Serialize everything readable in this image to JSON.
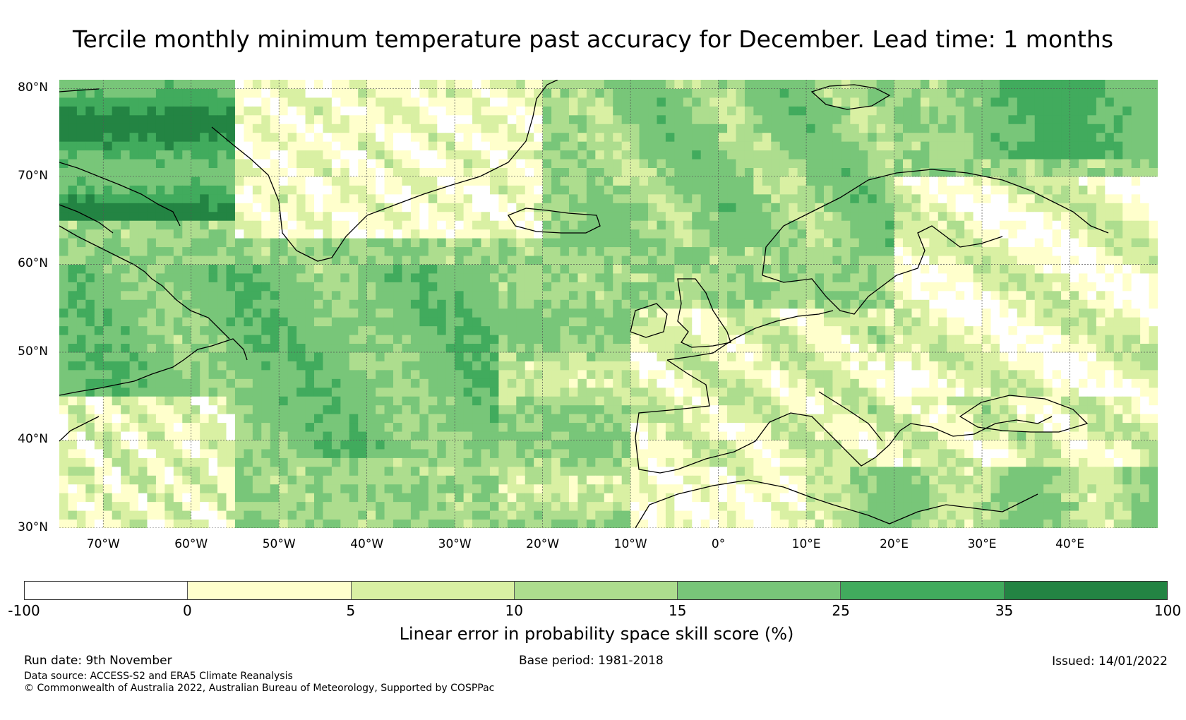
{
  "title": "Tercile monthly minimum temperature past accuracy for December. Lead time: 1 months",
  "map": {
    "lat_labels": [
      "80°N",
      "70°N",
      "60°N",
      "50°N",
      "40°N",
      "30°N"
    ],
    "lon_labels": [
      "70°W",
      "60°W",
      "50°W",
      "40°W",
      "30°W",
      "20°W",
      "10°W",
      "0°",
      "10°E",
      "20°E",
      "30°E",
      "40°E"
    ],
    "extent": {
      "lon_min": -75,
      "lon_max": 50,
      "lat_min": 30,
      "lat_max": 81
    }
  },
  "colorbar": {
    "label": "Linear error in probability space skill score (%)",
    "ticks": [
      "-100",
      "0",
      "5",
      "10",
      "15",
      "25",
      "35",
      "100"
    ],
    "colors": [
      "#ffffff",
      "#ffffcc",
      "#d9f0a3",
      "#addd8e",
      "#78c679",
      "#41ab5d",
      "#238443"
    ],
    "bins": [
      [
        -100,
        0
      ],
      [
        0,
        5
      ],
      [
        5,
        10
      ],
      [
        10,
        15
      ],
      [
        15,
        25
      ],
      [
        25,
        35
      ],
      [
        35,
        100
      ]
    ]
  },
  "footer": {
    "run_date": "Run date: 9th November",
    "base_period": "Base period: 1981-2018",
    "issued": "Issued: 14/01/2022",
    "data_source": "Data source: ACCESS-S2 and ERA5 Climate Reanalysis",
    "copyright": "© Commonwealth of Australia 2022, Australian Bureau of Meteorology, Supported by COSPPac"
  }
}
